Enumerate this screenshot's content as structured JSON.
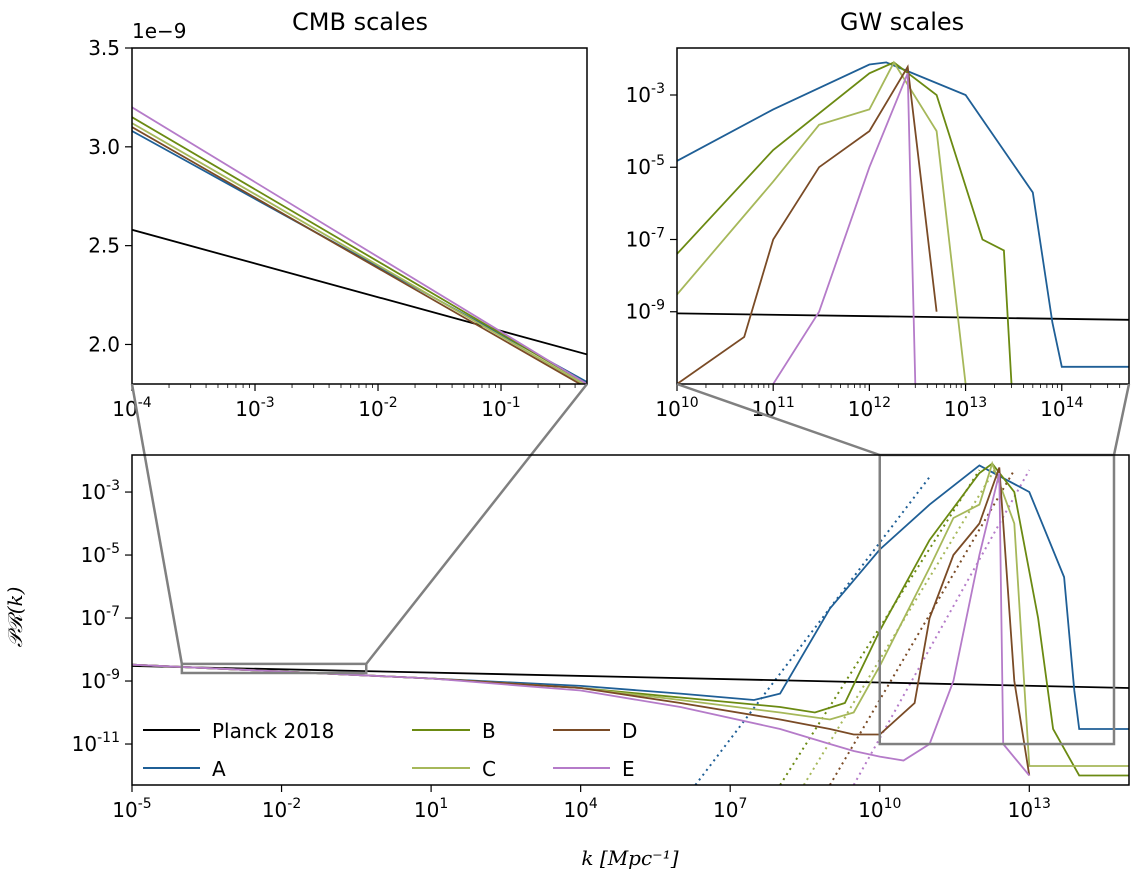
{
  "colors": {
    "planck": "#000000",
    "A": "#1f5f96",
    "B": "#6b8a12",
    "C": "#a6b85a",
    "D": "#7a4b26",
    "E": "#b57bc9",
    "frame": "#808080"
  },
  "chart_data": [
    {
      "id": "cmb",
      "type": "line",
      "title": "CMB scales",
      "x_scale": "log",
      "xlim": [
        0.0001,
        0.5
      ],
      "ylim": [
        1.8e-09,
        3.5e-09
      ],
      "y_offset_label": "1e−9",
      "y_ticks": [
        "2.0",
        "2.5",
        "3.0",
        "3.5"
      ],
      "x_ticks": [
        {
          "b": "10",
          "e": "-4"
        },
        {
          "b": "10",
          "e": "-3"
        },
        {
          "b": "10",
          "e": "-2"
        },
        {
          "b": "10",
          "e": "-1"
        }
      ],
      "series": [
        {
          "name": "Planck 2018",
          "x": [
            0.0001,
            0.5
          ],
          "y": [
            2.58e-09,
            1.95e-09
          ]
        },
        {
          "name": "A",
          "x": [
            0.0001,
            0.5
          ],
          "y": [
            3.08e-09,
            1.81e-09
          ]
        },
        {
          "name": "B",
          "x": [
            0.0001,
            0.5
          ],
          "y": [
            3.15e-09,
            1.8e-09
          ]
        },
        {
          "name": "C",
          "x": [
            0.0001,
            0.5
          ],
          "y": [
            3.12e-09,
            1.79e-09
          ]
        },
        {
          "name": "D",
          "x": [
            0.0001,
            0.5
          ],
          "y": [
            3.1e-09,
            1.78e-09
          ]
        },
        {
          "name": "E",
          "x": [
            0.0001,
            0.5
          ],
          "y": [
            3.2e-09,
            1.8e-09
          ]
        }
      ]
    },
    {
      "id": "gw",
      "type": "line",
      "title": "GW scales",
      "x_scale": "log",
      "y_scale": "log",
      "xlim": [
        10000000000.0,
        500000000000000.0
      ],
      "ylim": [
        1e-11,
        0.02
      ],
      "y_ticks": [
        {
          "b": "10",
          "e": "-9"
        },
        {
          "b": "10",
          "e": "-7"
        },
        {
          "b": "10",
          "e": "-5"
        },
        {
          "b": "10",
          "e": "-3"
        }
      ],
      "x_ticks": [
        {
          "b": "10",
          "e": "10"
        },
        {
          "b": "10",
          "e": "11"
        },
        {
          "b": "10",
          "e": "12"
        },
        {
          "b": "10",
          "e": "13"
        },
        {
          "b": "10",
          "e": "14"
        }
      ],
      "series": [
        {
          "name": "Planck 2018",
          "x": [
            10000000000.0,
            500000000000000.0
          ],
          "y": [
            9e-10,
            6e-10
          ]
        },
        {
          "name": "A",
          "x": [
            10000000000.0,
            100000000000.0,
            1000000000000.0,
            1500000000000.0,
            10000000000000.0,
            50000000000000.0,
            80000000000000.0,
            100000000000000.0,
            300000000000000.0,
            500000000000000.0
          ],
          "y": [
            1.5e-05,
            0.0004,
            0.007,
            0.008,
            0.001,
            2e-06,
            5e-10,
            3e-11,
            3e-11,
            3e-11
          ]
        },
        {
          "name": "B",
          "x": [
            10000000000.0,
            100000000000.0,
            1000000000000.0,
            1800000000000.0,
            5000000000000.0,
            15000000000000.0,
            25000000000000.0,
            30000000000000.0
          ],
          "y": [
            4e-08,
            3e-05,
            0.004,
            0.008,
            0.001,
            1e-07,
            5e-08,
            1e-11
          ]
        },
        {
          "name": "C",
          "x": [
            10000000000.0,
            100000000000.0,
            300000000000.0,
            1000000000000.0,
            1800000000000.0,
            5000000000000.0,
            10000000000000.0
          ],
          "y": [
            3e-09,
            4e-06,
            0.00015,
            0.0004,
            0.008,
            0.0001,
            1e-11
          ]
        },
        {
          "name": "D",
          "x": [
            10000000000.0,
            50000000000.0,
            100000000000.0,
            300000000000.0,
            1000000000000.0,
            2500000000000.0,
            5000000000000.0
          ],
          "y": [
            1e-11,
            2e-10,
            1e-07,
            1e-05,
            0.0001,
            0.006,
            1e-09
          ]
        },
        {
          "name": "E",
          "x": [
            100000000000.0,
            300000000000.0,
            1000000000000.0,
            2500000000000.0,
            3000000000000.0
          ],
          "y": [
            1e-11,
            1e-09,
            1e-05,
            0.004,
            1e-11
          ]
        }
      ]
    },
    {
      "id": "main",
      "type": "line",
      "title": "",
      "x_scale": "log",
      "y_scale": "log",
      "xlim": [
        1e-05,
        1000000000000000.0
      ],
      "ylim": [
        5e-13,
        0.015
      ],
      "xlabel": "k  [Mpc⁻¹]",
      "ylabel": "𝒫ℛ(k)",
      "y_ticks": [
        {
          "b": "10",
          "e": "-11"
        },
        {
          "b": "10",
          "e": "-9"
        },
        {
          "b": "10",
          "e": "-7"
        },
        {
          "b": "10",
          "e": "-5"
        },
        {
          "b": "10",
          "e": "-3"
        }
      ],
      "x_ticks": [
        {
          "b": "10",
          "e": "-5"
        },
        {
          "b": "10",
          "e": "-2"
        },
        {
          "b": "10",
          "e": "1"
        },
        {
          "b": "10",
          "e": "4"
        },
        {
          "b": "10",
          "e": "7"
        },
        {
          "b": "10",
          "e": "10"
        },
        {
          "b": "10",
          "e": "13"
        }
      ],
      "legend": {
        "placement": "lower-left",
        "entries": [
          "Planck 2018",
          "A",
          "B",
          "C",
          "D",
          "E"
        ]
      },
      "series": [
        {
          "name": "Planck 2018",
          "x": [
            1e-05,
            1000000000000000.0
          ],
          "y": [
            3e-09,
            6e-10
          ]
        },
        {
          "name": "A",
          "x": [
            1e-05,
            0.01,
            10,
            10000.0,
            1000000.0,
            30000000.0,
            100000000.0,
            1000000000.0,
            10000000000.0,
            100000000000.0,
            1000000000000.0,
            10000000000000.0,
            50000000000000.0,
            80000000000000.0,
            100000000000000.0,
            500000000000000.0,
            1000000000000000.0
          ],
          "y": [
            3.3e-09,
            2e-09,
            1.2e-09,
            7e-10,
            4e-10,
            2.5e-10,
            4e-10,
            2e-07,
            1.5e-05,
            0.0004,
            0.007,
            0.001,
            2e-06,
            5e-10,
            3e-11,
            3e-11,
            3e-11
          ]
        },
        {
          "name": "B",
          "x": [
            1e-05,
            0.01,
            10,
            10000.0,
            1000000.0,
            100000000.0,
            500000000.0,
            2000000000.0,
            10000000000.0,
            100000000000.0,
            1000000000000.0,
            1800000000000.0,
            5000000000000.0,
            15000000000000.0,
            30000000000000.0,
            100000000000000.0,
            1000000000000000.0
          ],
          "y": [
            3.3e-09,
            2e-09,
            1.2e-09,
            6e-10,
            3e-10,
            1.5e-10,
            1e-10,
            2e-10,
            4e-08,
            3e-05,
            0.004,
            0.008,
            0.001,
            1e-07,
            3e-11,
            1e-12,
            1e-12
          ]
        },
        {
          "name": "C",
          "x": [
            1e-05,
            0.01,
            10,
            10000.0,
            1000000.0,
            100000000.0,
            1000000000.0,
            3000000000.0,
            10000000000.0,
            100000000000.0,
            300000000000.0,
            1000000000000.0,
            1800000000000.0,
            5000000000000.0,
            10000000000000.0,
            100000000000000.0,
            1000000000000000.0
          ],
          "y": [
            3.3e-09,
            2e-09,
            1.2e-09,
            6e-10,
            2.5e-10,
            1e-10,
            6e-11,
            1e-10,
            3e-09,
            4e-06,
            0.00015,
            0.0004,
            0.008,
            0.0001,
            2e-12,
            2e-12,
            2e-12
          ]
        },
        {
          "name": "D",
          "x": [
            1e-05,
            0.01,
            10,
            10000.0,
            1000000.0,
            100000000.0,
            1000000000.0,
            3000000000.0,
            10000000000.0,
            50000000000.0,
            100000000000.0,
            300000000000.0,
            1000000000000.0,
            2500000000000.0,
            5000000000000.0,
            10000000000000.0
          ],
          "y": [
            3.3e-09,
            2e-09,
            1.2e-09,
            6e-10,
            2e-10,
            6e-11,
            3e-11,
            2e-11,
            2e-11,
            2e-10,
            1e-07,
            1e-05,
            0.0001,
            0.006,
            1e-09,
            1e-12
          ]
        },
        {
          "name": "E",
          "x": [
            1e-05,
            0.01,
            10,
            10000.0,
            1000000.0,
            100000000.0,
            1000000000.0,
            3000000000.0,
            10000000000.0,
            30000000000.0,
            100000000000.0,
            300000000000.0,
            1000000000000.0,
            2500000000000.0,
            3000000000000.0,
            10000000000000.0
          ],
          "y": [
            3.3e-09,
            2e-09,
            1.2e-09,
            5e-10,
            1.5e-10,
            3e-11,
            1e-11,
            6e-12,
            4e-12,
            3e-12,
            1e-11,
            1e-09,
            1e-05,
            0.004,
            1e-11,
            1e-12
          ]
        }
      ],
      "dotted_series": [
        {
          "name": "A",
          "x": [
            2000000.0,
            100000000000.0
          ],
          "y": [
            5e-13,
            0.003
          ]
        },
        {
          "name": "B",
          "x": [
            100000000.0,
            1000000000000.0
          ],
          "y": [
            5e-13,
            0.005
          ]
        },
        {
          "name": "C",
          "x": [
            300000000.0,
            2000000000000.0
          ],
          "y": [
            5e-13,
            0.005
          ]
        },
        {
          "name": "D",
          "x": [
            1000000000.0,
            5000000000000.0
          ],
          "y": [
            5e-13,
            0.005
          ]
        },
        {
          "name": "E",
          "x": [
            3000000000.0,
            10000000000000.0
          ],
          "y": [
            5e-13,
            0.005
          ]
        }
      ],
      "zoom_boxes": [
        {
          "target": "cmb",
          "x": [
            0.0001,
            0.5
          ],
          "y": [
            1.8e-09,
            3.5e-09
          ]
        },
        {
          "target": "gw",
          "x": [
            10000000000.0,
            500000000000000.0
          ],
          "y": [
            1e-11,
            0.015
          ]
        }
      ]
    }
  ]
}
